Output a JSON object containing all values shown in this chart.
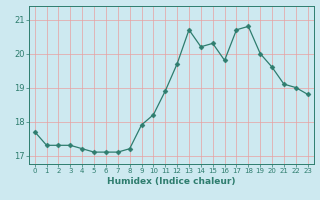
{
  "x": [
    0,
    1,
    2,
    3,
    4,
    5,
    6,
    7,
    8,
    9,
    10,
    11,
    12,
    13,
    14,
    15,
    16,
    17,
    18,
    19,
    20,
    21,
    22,
    23
  ],
  "y": [
    17.7,
    17.3,
    17.3,
    17.3,
    17.2,
    17.1,
    17.1,
    17.1,
    17.2,
    17.9,
    18.2,
    18.9,
    19.7,
    20.7,
    20.2,
    20.3,
    19.8,
    20.7,
    20.8,
    20.0,
    19.6,
    19.1,
    19.0,
    18.8
  ],
  "line_color": "#2e7d6e",
  "marker": "D",
  "marker_size": 2.5,
  "bg_color": "#cde9f0",
  "grid_color": "#e8a0a0",
  "axis_color": "#2e7d6e",
  "xlabel": "Humidex (Indice chaleur)",
  "xlabel_fontsize": 6.5,
  "ylabel_ticks": [
    17,
    18,
    19,
    20,
    21
  ],
  "xlim": [
    -0.5,
    23.5
  ],
  "ylim": [
    16.75,
    21.4
  ],
  "title": ""
}
